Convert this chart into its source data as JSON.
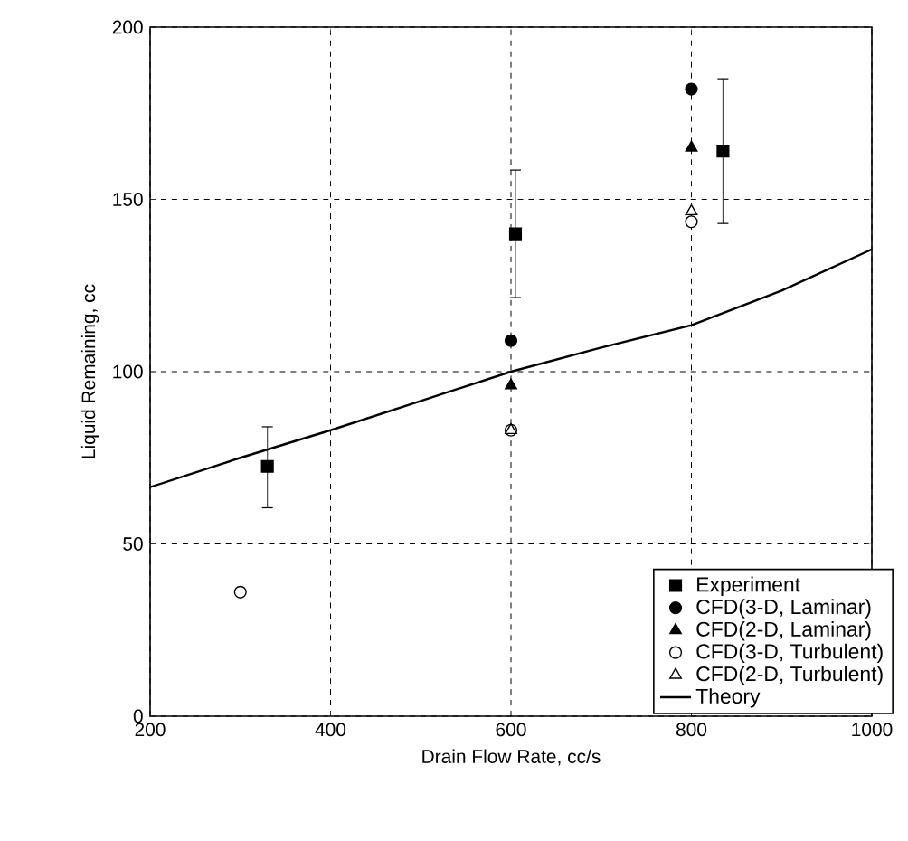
{
  "chart_data": {
    "type": "scatter",
    "xlabel": "Drain Flow Rate, cc/s",
    "ylabel": "Liquid Remaining, cc",
    "xlim": [
      200,
      1000
    ],
    "xticks": [
      200,
      400,
      600,
      800,
      1000
    ],
    "ylim": [
      0,
      200
    ],
    "yticks": [
      0,
      50,
      100,
      150,
      200
    ],
    "grid": true,
    "legend": "bottom right",
    "series": [
      {
        "name": "Experiment",
        "color": "#000000",
        "marker": "square",
        "x": [
          330,
          605,
          835
        ],
        "values": [
          72.5,
          140,
          164
        ],
        "errors": [
          [
            60.5,
            84
          ],
          [
            121.5,
            158.5
          ],
          [
            143,
            185
          ]
        ]
      },
      {
        "name": "CFD(3-D, Laminar)",
        "color": "#000000",
        "marker": "circle",
        "x": [
          600,
          800
        ],
        "values": [
          109,
          182
        ]
      },
      {
        "name": "CFD(2-D, Laminar)",
        "color": "#000000",
        "marker": "triangle",
        "x": [
          600,
          800
        ],
        "values": [
          96,
          165
        ]
      },
      {
        "name": "CFD(3-D, Turbulent)",
        "color": "#ffffff",
        "marker": "circle",
        "x": [
          300,
          600,
          800
        ],
        "values": [
          36,
          83,
          143.5
        ]
      },
      {
        "name": "CFD(2-D, Turbulent)",
        "color": "#ffffff",
        "marker": "triangle",
        "x": [
          600,
          800
        ],
        "values": [
          83,
          146.5
        ]
      },
      {
        "name": "Theory",
        "type": "line",
        "color": "#000000",
        "marker": "none",
        "line_style": "solid",
        "x": [
          200,
          300,
          400,
          500,
          600,
          700,
          800,
          900,
          1000
        ],
        "values": [
          66.5,
          75,
          83,
          91.5,
          100,
          107,
          113.5,
          123.5,
          135.5
        ]
      }
    ]
  }
}
